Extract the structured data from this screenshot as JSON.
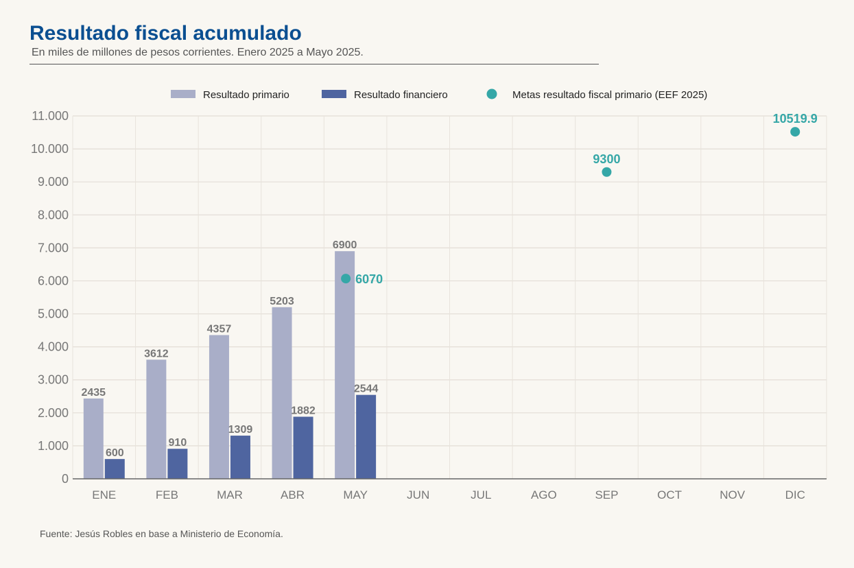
{
  "header": {
    "title": "Resultado fiscal acumulado",
    "subtitle": "En miles de millones de pesos corrientes. Enero 2025 a Mayo 2025."
  },
  "footer": {
    "source": "Fuente: Jesús Robles en base a Ministerio de Economía."
  },
  "colors": {
    "primary_bar": "#a9aec8",
    "financial_bar": "#4f65a0",
    "goal_point": "#35a7a7",
    "title": "#0b4f91"
  },
  "chart_data": {
    "type": "bar",
    "categories": [
      "ENE",
      "FEB",
      "MAR",
      "ABR",
      "MAY",
      "JUN",
      "JUL",
      "AGO",
      "SEP",
      "OCT",
      "NOV",
      "DIC"
    ],
    "series": [
      {
        "name": "Resultado primario",
        "values": [
          2435,
          3612,
          4357,
          5203,
          6900,
          null,
          null,
          null,
          null,
          null,
          null,
          null
        ],
        "color": "#a9aec8"
      },
      {
        "name": "Resultado financiero",
        "values": [
          600,
          910,
          1309,
          1882,
          2544,
          null,
          null,
          null,
          null,
          null,
          null,
          null
        ],
        "color": "#4f65a0"
      },
      {
        "name": "Metas resultado fiscal primario (EEF 2025)",
        "type": "scatter",
        "points": [
          {
            "category": "MAY",
            "value": 6070,
            "label": "6070"
          },
          {
            "category": "SEP",
            "value": 9300,
            "label": "9300"
          },
          {
            "category": "DIC",
            "value": 10519.9,
            "label": "10519.9"
          }
        ],
        "color": "#35a7a7"
      }
    ],
    "y_ticks": [
      "0",
      "1.000",
      "2.000",
      "3.000",
      "4.000",
      "5.000",
      "6.000",
      "7.000",
      "8.000",
      "9.000",
      "10.000",
      "11.000"
    ],
    "ylim": [
      0,
      11000
    ],
    "grid": true,
    "legend": "top"
  }
}
